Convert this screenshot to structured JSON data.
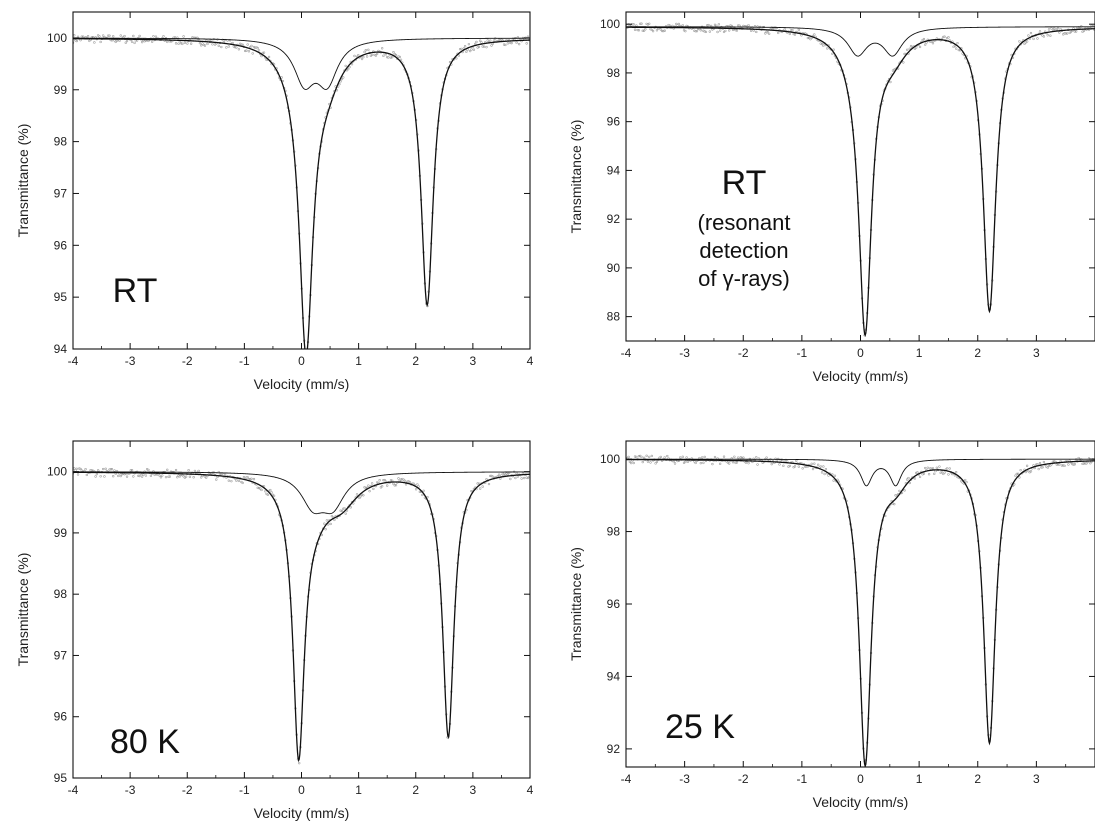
{
  "chart_data": [
    {
      "type": "scatter",
      "panel": "top-left",
      "xlabel": "Velocity (mm/s)",
      "ylabel": "Transmittance (%)",
      "xlim": [
        -4,
        4
      ],
      "ylim": [
        94,
        100.5
      ],
      "xticks": [
        -4,
        -3,
        -2,
        -1,
        0,
        1,
        2,
        3,
        4
      ],
      "yticks": [
        94,
        95,
        96,
        97,
        98,
        99,
        100
      ],
      "annotation": [
        "RT"
      ],
      "series": [
        {
          "kind": "total-fit",
          "baseline": 100,
          "peaks": [
            {
              "x": 0.08,
              "depth": 5.35,
              "width": 0.14
            },
            {
              "x": 2.2,
              "depth": 5.1,
              "width": 0.13
            },
            {
              "x": 0.05,
              "depth": 0.55,
              "width": 0.35
            },
            {
              "x": 0.45,
              "depth": 0.55,
              "width": 0.3
            }
          ]
        },
        {
          "kind": "minor-doublet",
          "baseline": 100,
          "peaks": [
            {
              "x": 0.05,
              "depth": 0.8,
              "width": 0.22
            },
            {
              "x": 0.45,
              "depth": 0.8,
              "width": 0.22
            }
          ]
        }
      ]
    },
    {
      "type": "scatter",
      "panel": "top-right",
      "xlabel": "Velocity (mm/s)",
      "ylabel": "Transmittance (%)",
      "xlim": [
        -4,
        4
      ],
      "ylim": [
        87,
        100.5
      ],
      "xticks": [
        -4,
        -3,
        -2,
        -1,
        0,
        1,
        2,
        3
      ],
      "yticks": [
        88,
        90,
        92,
        94,
        96,
        98,
        100
      ],
      "annotation": [
        "RT",
        "(resonant",
        "detection",
        "of γ-rays)"
      ],
      "series": [
        {
          "kind": "total-fit",
          "baseline": 99.9,
          "peaks": [
            {
              "x": 0.08,
              "depth": 11.6,
              "width": 0.13
            },
            {
              "x": 2.2,
              "depth": 11.6,
              "width": 0.13
            },
            {
              "x": -0.05,
              "depth": 0.9,
              "width": 0.3
            },
            {
              "x": 0.55,
              "depth": 0.9,
              "width": 0.3
            }
          ]
        },
        {
          "kind": "minor-doublet",
          "baseline": 99.9,
          "peaks": [
            {
              "x": -0.05,
              "depth": 1.1,
              "width": 0.2
            },
            {
              "x": 0.55,
              "depth": 1.1,
              "width": 0.2
            }
          ]
        }
      ]
    },
    {
      "type": "scatter",
      "panel": "bottom-left",
      "xlabel": "Velocity (mm/s)",
      "ylabel": "Transmittance (%)",
      "xlim": [
        -4,
        4
      ],
      "ylim": [
        95,
        100.5
      ],
      "xticks": [
        -4,
        -3,
        -2,
        -1,
        0,
        1,
        2,
        3,
        4
      ],
      "yticks": [
        95,
        96,
        97,
        98,
        99,
        100
      ],
      "annotation": [
        "80 K"
      ],
      "series": [
        {
          "kind": "total-fit",
          "baseline": 100,
          "peaks": [
            {
              "x": -0.05,
              "depth": 4.3,
              "width": 0.12
            },
            {
              "x": 2.57,
              "depth": 4.3,
              "width": 0.12
            },
            {
              "x": 0.2,
              "depth": 0.5,
              "width": 0.35
            },
            {
              "x": 0.7,
              "depth": 0.4,
              "width": 0.35
            }
          ]
        },
        {
          "kind": "minor-doublet",
          "baseline": 100,
          "peaks": [
            {
              "x": 0.2,
              "depth": 0.5,
              "width": 0.25
            },
            {
              "x": 0.55,
              "depth": 0.5,
              "width": 0.25
            }
          ]
        }
      ]
    },
    {
      "type": "scatter",
      "panel": "bottom-right",
      "xlabel": "Velocity (mm/s)",
      "ylabel": "Transmittance (%)",
      "xlim": [
        -4,
        4
      ],
      "ylim": [
        91.5,
        100.5
      ],
      "xticks": [
        -4,
        -3,
        -2,
        -1,
        0,
        1,
        2,
        3
      ],
      "yticks": [
        92,
        94,
        96,
        98,
        100
      ],
      "annotation": [
        "25 K"
      ],
      "series": [
        {
          "kind": "total-fit",
          "baseline": 100,
          "peaks": [
            {
              "x": 0.08,
              "depth": 7.8,
              "width": 0.12
            },
            {
              "x": 2.2,
              "depth": 7.8,
              "width": 0.12
            },
            {
              "x": 0.1,
              "depth": 0.55,
              "width": 0.25
            },
            {
              "x": 0.6,
              "depth": 0.55,
              "width": 0.25
            }
          ]
        },
        {
          "kind": "minor-doublet",
          "baseline": 100,
          "peaks": [
            {
              "x": 0.1,
              "depth": 0.7,
              "width": 0.12
            },
            {
              "x": 0.6,
              "depth": 0.7,
              "width": 0.12
            }
          ]
        }
      ]
    }
  ]
}
